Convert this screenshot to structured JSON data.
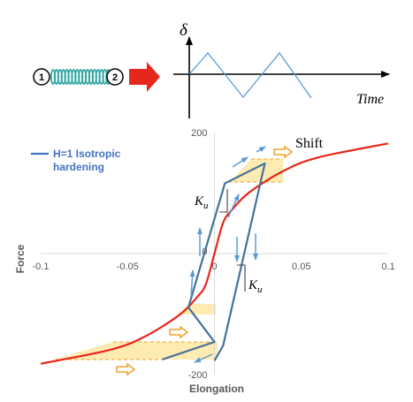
{
  "top_diagram": {
    "node_1_label": "1",
    "node_2_label": "2",
    "y_axis_symbol": "δ",
    "x_axis_label": "Time",
    "spring_color": "#35a7a3",
    "arrow_color": "#e8271c",
    "wave_color": "#5b9bd5"
  },
  "chart_data": {
    "type": "line",
    "xlabel": "Elongation",
    "ylabel": "Force",
    "xlim": [
      -0.1,
      0.1
    ],
    "ylim": [
      -200,
      200
    ],
    "x_ticks": [
      "-0.1",
      "-0.05",
      "0",
      "0.05",
      "0.1"
    ],
    "y_ticks": [
      "200",
      "0",
      "-200"
    ],
    "series": [
      {
        "name": "",
        "color": "#e8271c",
        "points": [
          [
            -0.1,
            -182
          ],
          [
            -0.06,
            -159
          ],
          [
            -0.04,
            -137
          ],
          [
            -0.02,
            -101
          ],
          [
            -0.01,
            -72
          ],
          [
            -0.005,
            -51
          ],
          [
            0,
            0
          ],
          [
            0.005,
            51
          ],
          [
            0.01,
            72
          ],
          [
            0.02,
            101
          ],
          [
            0.04,
            137
          ],
          [
            0.06,
            159
          ],
          [
            0.1,
            182
          ]
        ]
      },
      {
        "name": "H=1 Isotropic hardening",
        "color": "#4472c4",
        "points": [
          [
            0,
            -177
          ],
          [
            0.005,
            -152
          ],
          [
            0.029,
            149
          ],
          [
            0.006,
            116
          ],
          [
            -0.015,
            -89
          ],
          [
            0.0,
            -146
          ],
          [
            -0.03,
            -175
          ]
        ]
      }
    ],
    "annotations": {
      "shift_label": "Shift",
      "ku_symbol": "K",
      "ku_subscript": "u"
    }
  },
  "legend": {
    "line1": "H=1 Isotropic",
    "line2": "hardening"
  },
  "colors": {
    "highlight_fill": "#fde9a9",
    "hollow_arrow_outline": "#f2a22a",
    "direction_arrow": "#5b9bd5",
    "axis_line": "#d9d9d9"
  }
}
